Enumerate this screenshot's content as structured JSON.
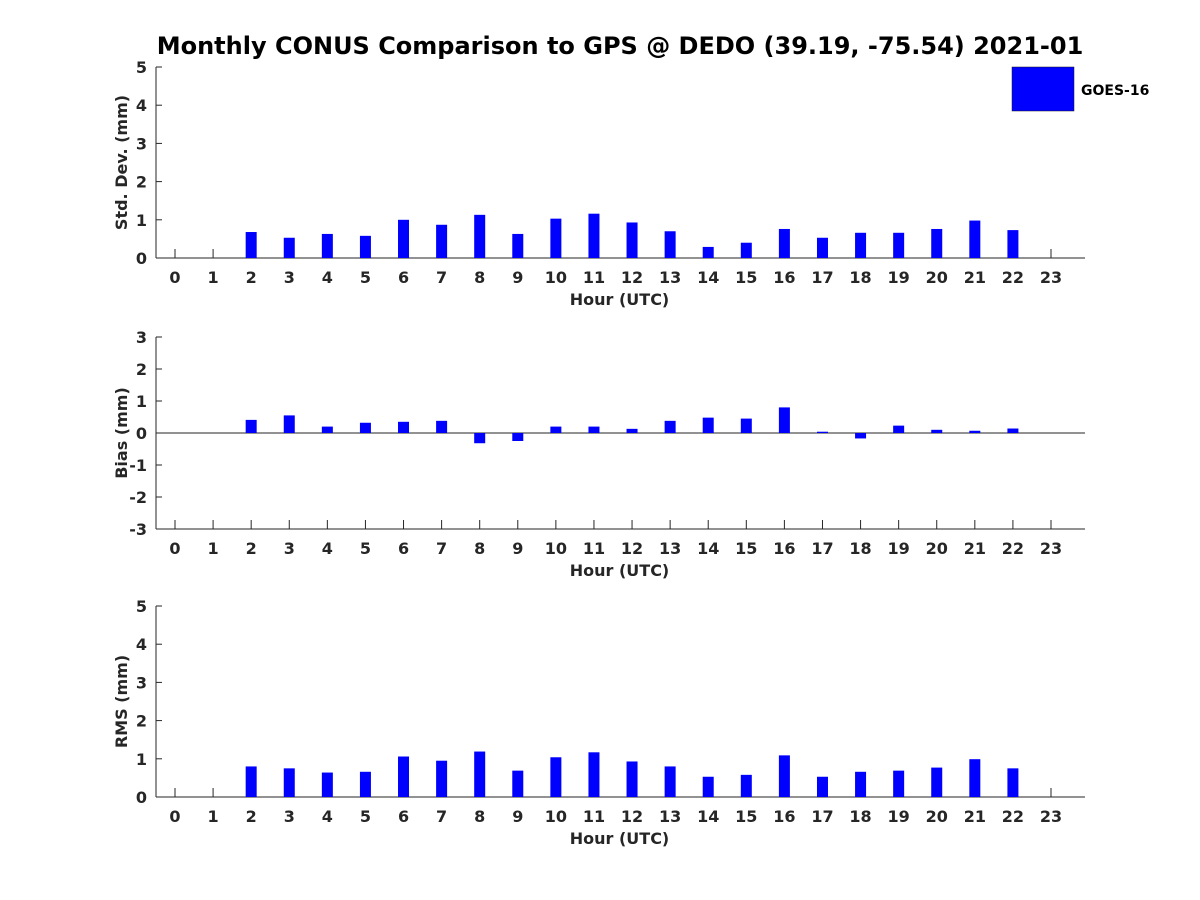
{
  "title": "Monthly CONUS Comparison to GPS @ DEDO (39.19, -75.54) 2021-01",
  "chart_data": [
    {
      "type": "bar",
      "ylabel": "Std. Dev. (mm)",
      "xlabel": "Hour (UTC)",
      "ylim": [
        0,
        5
      ],
      "yticks": [
        0,
        1,
        2,
        3,
        4,
        5
      ],
      "categories": [
        "0",
        "1",
        "2",
        "3",
        "4",
        "5",
        "6",
        "7",
        "8",
        "9",
        "10",
        "11",
        "12",
        "13",
        "14",
        "15",
        "16",
        "17",
        "18",
        "19",
        "20",
        "21",
        "22",
        "23"
      ],
      "series": [
        {
          "name": "GOES-16",
          "color": "#0000ff",
          "values": [
            null,
            null,
            0.68,
            0.53,
            0.63,
            0.58,
            1.0,
            0.87,
            1.13,
            0.63,
            1.03,
            1.16,
            0.93,
            0.7,
            0.29,
            0.4,
            0.76,
            0.53,
            0.66,
            0.66,
            0.76,
            0.98,
            0.73,
            null
          ]
        }
      ],
      "legend": {
        "entries": [
          "GOES-16"
        ],
        "position": "top-right"
      }
    },
    {
      "type": "bar",
      "ylabel": "Bias (mm)",
      "xlabel": "Hour (UTC)",
      "ylim": [
        -3,
        3
      ],
      "yticks": [
        -3,
        -2,
        -1,
        0,
        1,
        2,
        3
      ],
      "categories": [
        "0",
        "1",
        "2",
        "3",
        "4",
        "5",
        "6",
        "7",
        "8",
        "9",
        "10",
        "11",
        "12",
        "13",
        "14",
        "15",
        "16",
        "17",
        "18",
        "19",
        "20",
        "21",
        "22",
        "23"
      ],
      "series": [
        {
          "name": "GOES-16",
          "color": "#0000ff",
          "values": [
            null,
            null,
            0.41,
            0.55,
            0.2,
            0.32,
            0.35,
            0.38,
            -0.32,
            -0.25,
            0.2,
            0.2,
            0.13,
            0.38,
            0.48,
            0.45,
            0.8,
            0.04,
            -0.17,
            0.23,
            0.1,
            0.07,
            0.14,
            null
          ]
        }
      ]
    },
    {
      "type": "bar",
      "ylabel": "RMS (mm)",
      "xlabel": "Hour (UTC)",
      "ylim": [
        0,
        5
      ],
      "yticks": [
        0,
        1,
        2,
        3,
        4,
        5
      ],
      "categories": [
        "0",
        "1",
        "2",
        "3",
        "4",
        "5",
        "6",
        "7",
        "8",
        "9",
        "10",
        "11",
        "12",
        "13",
        "14",
        "15",
        "16",
        "17",
        "18",
        "19",
        "20",
        "21",
        "22",
        "23"
      ],
      "series": [
        {
          "name": "GOES-16",
          "color": "#0000ff",
          "values": [
            null,
            null,
            0.8,
            0.75,
            0.64,
            0.66,
            1.06,
            0.95,
            1.19,
            0.69,
            1.04,
            1.17,
            0.93,
            0.8,
            0.53,
            0.58,
            1.09,
            0.53,
            0.66,
            0.69,
            0.77,
            0.99,
            0.75,
            null
          ]
        }
      ]
    }
  ]
}
